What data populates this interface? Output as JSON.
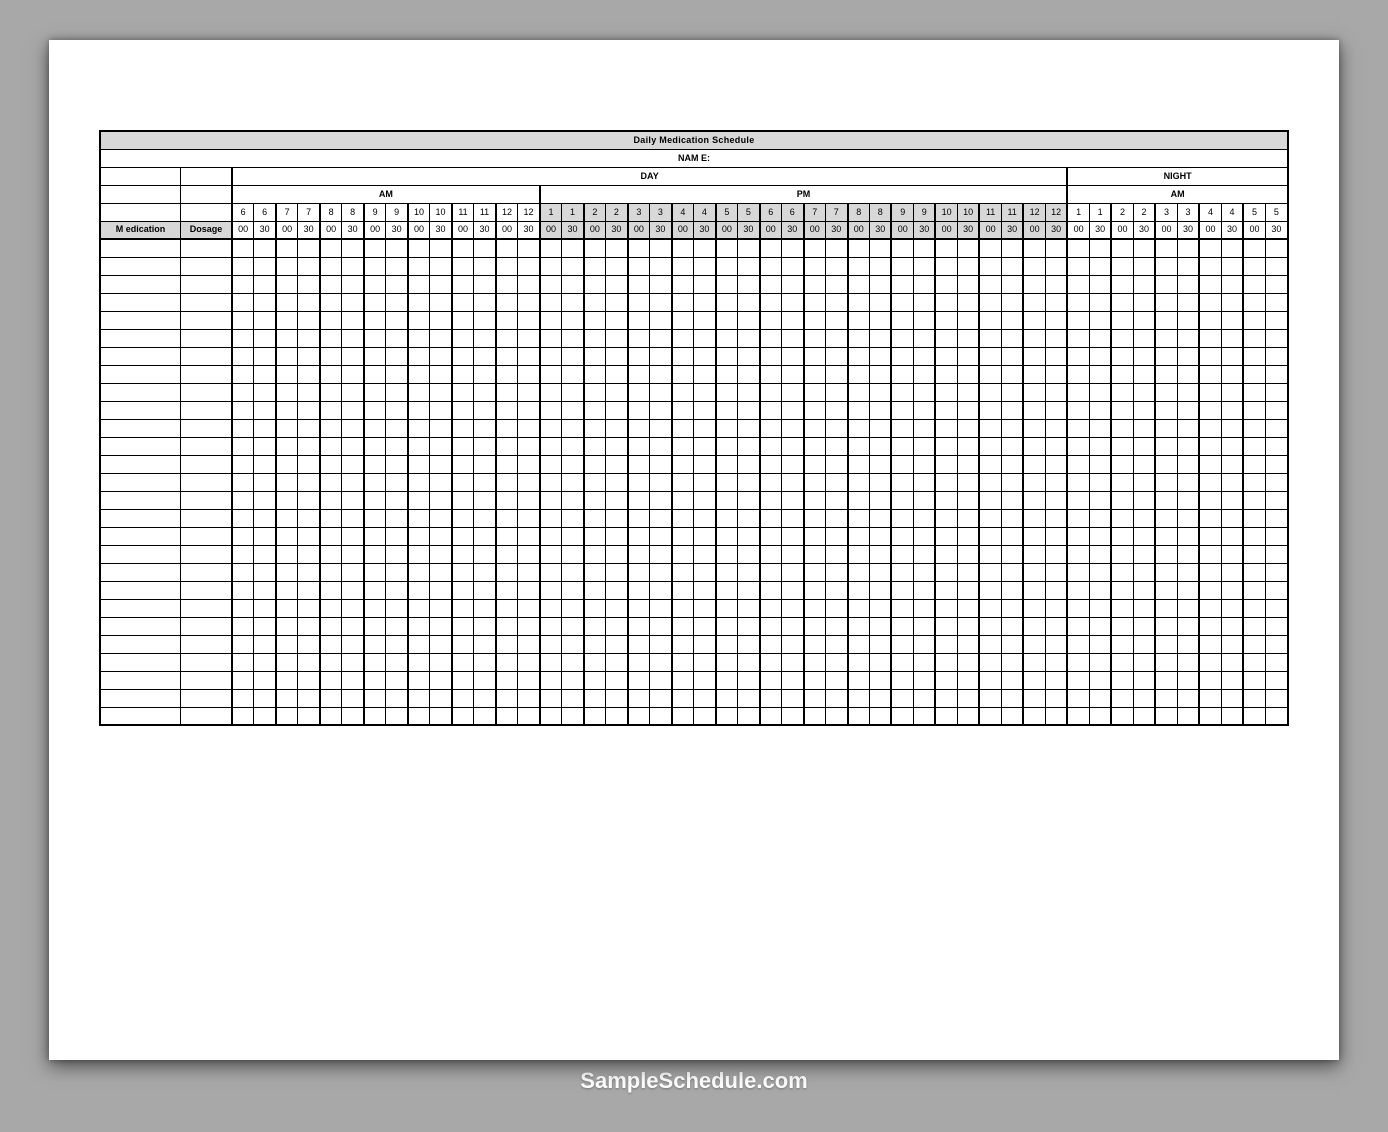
{
  "title": "Daily Medication Schedule",
  "name_label": "NAM E:",
  "sections": {
    "day": "DAY",
    "night": "NIGHT"
  },
  "ampm": {
    "am": "AM",
    "pm": "PM"
  },
  "left_headers": {
    "medication": "M edication",
    "dosage": "Dosage"
  },
  "watermark": "SampleSchedule.com",
  "hours": [
    "6",
    "6",
    "7",
    "7",
    "8",
    "8",
    "9",
    "9",
    "10",
    "10",
    "11",
    "11",
    "12",
    "12",
    "1",
    "1",
    "2",
    "2",
    "3",
    "3",
    "4",
    "4",
    "5",
    "5",
    "6",
    "6",
    "7",
    "7",
    "8",
    "8",
    "9",
    "9",
    "10",
    "10",
    "11",
    "11",
    "12",
    "12",
    "1",
    "1",
    "2",
    "2",
    "3",
    "3",
    "4",
    "4",
    "5",
    "5"
  ],
  "minutes_pair": [
    "00",
    "30"
  ],
  "hour_pairs_count": 24,
  "pm_shade_start_pair": 7,
  "pm_shade_end_pair": 18,
  "am1_pairs": 7,
  "pm_pairs": 12,
  "night_section_pairs": 5,
  "am2_pairs": 5,
  "data_row_count": 27,
  "colors": {
    "page_bg": "#a8a8a8",
    "sheet_bg": "#ffffff",
    "header_gray": "#d8d8d8",
    "line": "#000000"
  }
}
